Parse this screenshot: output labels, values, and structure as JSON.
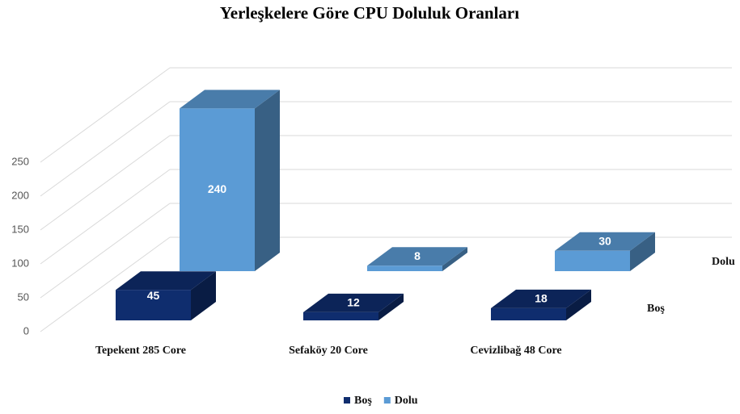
{
  "chart_data": {
    "type": "bar3d",
    "title": "Yerleşkelere Göre CPU Doluluk Oranları",
    "categories": [
      "Tepekent 285 Core",
      "Sefaköy 20 Core",
      "Cevizlibağ 48 Core"
    ],
    "series": [
      {
        "name": "Boş",
        "color": "#0f2d6e",
        "values": [
          45,
          12,
          18
        ]
      },
      {
        "name": "Dolu",
        "color": "#5b9bd5",
        "values": [
          240,
          8,
          30
        ]
      }
    ],
    "ylim": [
      0,
      250
    ],
    "yticks": [
      0,
      50,
      100,
      150,
      200,
      250
    ],
    "grid": true,
    "legend": "bottom"
  }
}
